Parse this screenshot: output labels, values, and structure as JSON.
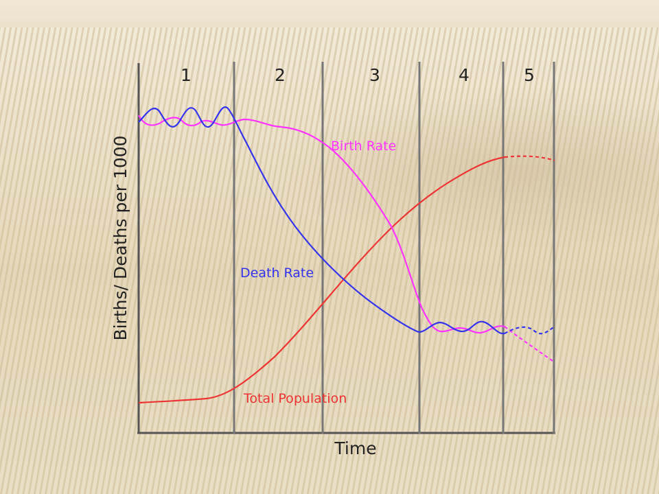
{
  "diagram": {
    "stages": [
      "1",
      "2",
      "3",
      "4",
      "5"
    ],
    "x_axis_label": "Time",
    "y_axis_label": "Births/ Deaths per 1000",
    "curves": [
      {
        "name": "Birth Rate",
        "color": "#ff33ff"
      },
      {
        "name": "Death Rate",
        "color": "#3333ee"
      },
      {
        "name": "Total Population",
        "color": "#ee3333"
      }
    ]
  }
}
